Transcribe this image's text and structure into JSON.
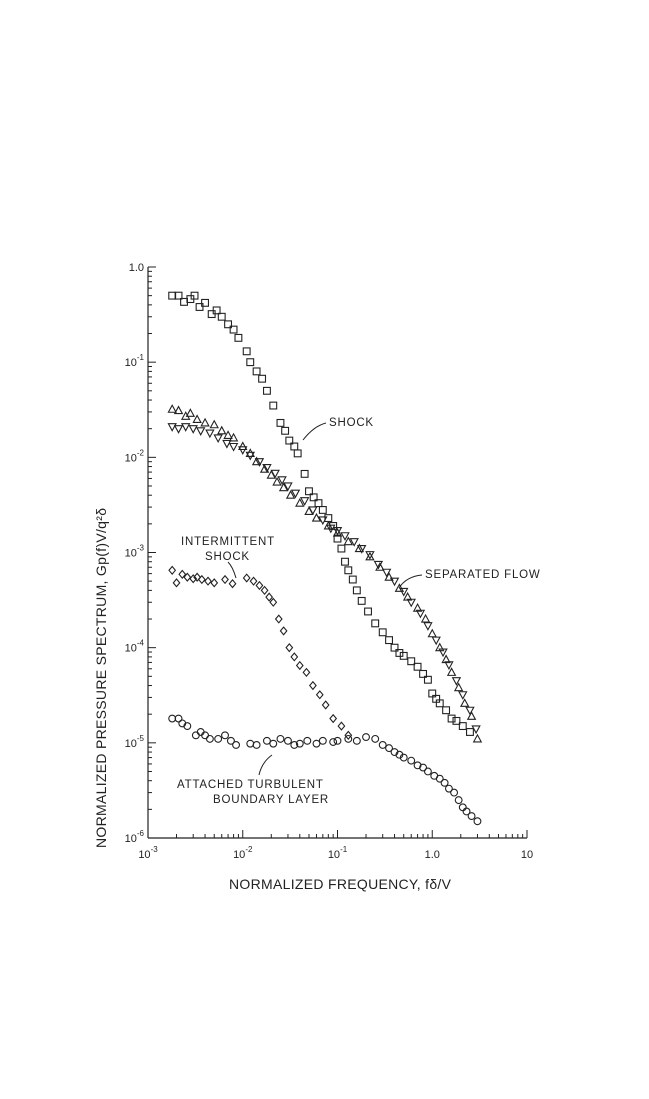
{
  "chart_data": {
    "type": "scatter",
    "title": "",
    "xlabel": "NORMALIZED FREQUENCY,  fδ/V",
    "ylabel": "NORMALIZED PRESSURE SPECTRUM,  Gp(f)V/q²δ",
    "x_scale": "log",
    "y_scale": "log",
    "xlim": [
      0.001,
      10
    ],
    "ylim": [
      1e-06,
      1
    ],
    "x_ticks": [
      {
        "base": "10",
        "exp": "-3"
      },
      {
        "base": "10",
        "exp": "-2"
      },
      {
        "base": "10",
        "exp": "-1"
      },
      {
        "base": "1.0",
        "exp": ""
      },
      {
        "base": "10",
        "exp": ""
      }
    ],
    "y_ticks": [
      {
        "base": "1.0",
        "exp": ""
      },
      {
        "base": "10",
        "exp": "-1"
      },
      {
        "base": "10",
        "exp": "-2"
      },
      {
        "base": "10",
        "exp": "-3"
      },
      {
        "base": "10",
        "exp": "-4"
      },
      {
        "base": "10",
        "exp": "-5"
      },
      {
        "base": "10",
        "exp": "-6"
      }
    ],
    "grid": false,
    "legend": "none",
    "series": [
      {
        "marker": "square",
        "points": [
          [
            0.0018,
            0.5
          ],
          [
            0.0021,
            0.5
          ],
          [
            0.0024,
            0.43
          ],
          [
            0.0028,
            0.46
          ],
          [
            0.0031,
            0.5
          ],
          [
            0.0035,
            0.38
          ],
          [
            0.004,
            0.42
          ],
          [
            0.0047,
            0.32
          ],
          [
            0.0053,
            0.35
          ],
          [
            0.006,
            0.3
          ],
          [
            0.007,
            0.25
          ],
          [
            0.008,
            0.22
          ],
          [
            0.009,
            0.18
          ],
          [
            0.011,
            0.13
          ],
          [
            0.012,
            0.1
          ],
          [
            0.014,
            0.08
          ],
          [
            0.016,
            0.067
          ],
          [
            0.018,
            0.05
          ],
          [
            0.021,
            0.035
          ],
          [
            0.025,
            0.023
          ],
          [
            0.028,
            0.019
          ],
          [
            0.031,
            0.015
          ],
          [
            0.035,
            0.013
          ],
          [
            0.038,
            0.011
          ],
          [
            0.045,
            0.0067
          ],
          [
            0.05,
            0.0044
          ],
          [
            0.056,
            0.0038
          ],
          [
            0.063,
            0.0033
          ],
          [
            0.07,
            0.0028
          ],
          [
            0.08,
            0.0023
          ],
          [
            0.09,
            0.0019
          ],
          [
            0.1,
            0.0014
          ],
          [
            0.11,
            0.0011
          ],
          [
            0.12,
            0.0008
          ],
          [
            0.13,
            0.00065
          ],
          [
            0.145,
            0.00052
          ],
          [
            0.16,
            0.0004
          ],
          [
            0.18,
            0.00031
          ],
          [
            0.21,
            0.00024
          ],
          [
            0.25,
            0.00018
          ],
          [
            0.3,
            0.000145
          ],
          [
            0.35,
            0.00012
          ],
          [
            0.4,
            0.0001
          ],
          [
            0.45,
            8.8e-05
          ],
          [
            0.5,
            8.2e-05
          ],
          [
            0.6,
            7.2e-05
          ],
          [
            0.7,
            6.3e-05
          ],
          [
            0.8,
            5.3e-05
          ],
          [
            0.9,
            4.6e-05
          ],
          [
            1.0,
            3.3e-05
          ],
          [
            1.1,
            2.9e-05
          ],
          [
            1.2,
            2.6e-05
          ],
          [
            1.4,
            2.2e-05
          ],
          [
            1.6,
            1.8e-05
          ],
          [
            1.8,
            1.7e-05
          ],
          [
            2.1,
            1.5e-05
          ],
          [
            2.5,
            1.3e-05
          ]
        ]
      },
      {
        "marker": "triangle-up",
        "points": [
          [
            0.0018,
            0.032
          ],
          [
            0.0021,
            0.031
          ],
          [
            0.0025,
            0.027
          ],
          [
            0.0028,
            0.029
          ],
          [
            0.0033,
            0.025
          ],
          [
            0.004,
            0.023
          ],
          [
            0.005,
            0.022
          ],
          [
            0.006,
            0.019
          ],
          [
            0.007,
            0.017
          ],
          [
            0.008,
            0.016
          ],
          [
            0.01,
            0.013
          ],
          [
            0.012,
            0.011
          ],
          [
            0.014,
            0.009
          ],
          [
            0.017,
            0.0075
          ],
          [
            0.02,
            0.0065
          ],
          [
            0.023,
            0.0055
          ],
          [
            0.027,
            0.0048
          ],
          [
            0.032,
            0.004
          ],
          [
            0.04,
            0.0033
          ],
          [
            0.05,
            0.0027
          ],
          [
            0.06,
            0.0023
          ],
          [
            0.08,
            0.0019
          ],
          [
            0.1,
            0.0016
          ],
          [
            0.13,
            0.0013
          ],
          [
            0.17,
            0.0011
          ],
          [
            0.22,
            0.0009
          ],
          [
            0.28,
            0.0007
          ],
          [
            0.35,
            0.00055
          ],
          [
            0.45,
            0.00042
          ],
          [
            0.55,
            0.00034
          ],
          [
            0.7,
            0.00026
          ],
          [
            0.85,
            0.0002
          ],
          [
            1.0,
            0.00014
          ],
          [
            1.2,
            0.0001
          ],
          [
            1.4,
            7.5e-05
          ],
          [
            1.6,
            5.5e-05
          ],
          [
            1.9,
            3.8e-05
          ],
          [
            2.2,
            2.6e-05
          ],
          [
            2.6,
            1.9e-05
          ],
          [
            3.0,
            1.1e-05
          ]
        ]
      },
      {
        "marker": "triangle-down",
        "points": [
          [
            0.0018,
            0.021
          ],
          [
            0.0021,
            0.02
          ],
          [
            0.0025,
            0.021
          ],
          [
            0.003,
            0.02
          ],
          [
            0.0036,
            0.019
          ],
          [
            0.0045,
            0.018
          ],
          [
            0.0055,
            0.016
          ],
          [
            0.0068,
            0.014
          ],
          [
            0.008,
            0.013
          ],
          [
            0.01,
            0.012
          ],
          [
            0.012,
            0.0105
          ],
          [
            0.015,
            0.009
          ],
          [
            0.018,
            0.0078
          ],
          [
            0.022,
            0.0068
          ],
          [
            0.026,
            0.0058
          ],
          [
            0.03,
            0.005
          ],
          [
            0.036,
            0.0042
          ],
          [
            0.045,
            0.0035
          ],
          [
            0.055,
            0.0028
          ],
          [
            0.07,
            0.0022
          ],
          [
            0.085,
            0.0018
          ],
          [
            0.1,
            0.0017
          ],
          [
            0.12,
            0.0015
          ],
          [
            0.15,
            0.0013
          ],
          [
            0.18,
            0.0011
          ],
          [
            0.22,
            0.00095
          ],
          [
            0.27,
            0.00075
          ],
          [
            0.33,
            0.00062
          ],
          [
            0.4,
            0.0005
          ],
          [
            0.5,
            0.00039
          ],
          [
            0.6,
            0.0003
          ],
          [
            0.75,
            0.00023
          ],
          [
            0.9,
            0.00017
          ],
          [
            1.1,
            0.00012
          ],
          [
            1.3,
            9e-05
          ],
          [
            1.5,
            6.6e-05
          ],
          [
            1.8,
            4.5e-05
          ],
          [
            2.1,
            3.2e-05
          ],
          [
            2.5,
            2.2e-05
          ],
          [
            2.9,
            1.4e-05
          ]
        ]
      },
      {
        "marker": "diamond",
        "points": [
          [
            0.0018,
            0.00065
          ],
          [
            0.002,
            0.00048
          ],
          [
            0.0023,
            0.00059
          ],
          [
            0.0026,
            0.00055
          ],
          [
            0.003,
            0.00053
          ],
          [
            0.0033,
            0.00055
          ],
          [
            0.0037,
            0.00052
          ],
          [
            0.0043,
            0.0005
          ],
          [
            0.005,
            0.00048
          ],
          [
            0.0065,
            0.00052
          ],
          [
            0.0078,
            0.00047
          ],
          [
            0.011,
            0.00054
          ],
          [
            0.013,
            0.0005
          ],
          [
            0.015,
            0.00045
          ],
          [
            0.017,
            0.0004
          ],
          [
            0.019,
            0.00034
          ],
          [
            0.021,
            0.0003
          ],
          [
            0.024,
            0.0002
          ],
          [
            0.027,
            0.00015
          ],
          [
            0.031,
            0.0001
          ],
          [
            0.035,
            8e-05
          ],
          [
            0.04,
            6.5e-05
          ],
          [
            0.047,
            5.5e-05
          ],
          [
            0.055,
            4e-05
          ],
          [
            0.065,
            3.2e-05
          ],
          [
            0.075,
            2.5e-05
          ],
          [
            0.09,
            1.8e-05
          ],
          [
            0.11,
            1.5e-05
          ],
          [
            0.13,
            1.2e-05
          ]
        ]
      },
      {
        "marker": "circle",
        "points": [
          [
            0.0018,
            1.8e-05
          ],
          [
            0.0021,
            1.8e-05
          ],
          [
            0.0023,
            1.6e-05
          ],
          [
            0.0026,
            1.5e-05
          ],
          [
            0.0032,
            1.2e-05
          ],
          [
            0.0036,
            1.3e-05
          ],
          [
            0.004,
            1.2e-05
          ],
          [
            0.0045,
            1.1e-05
          ],
          [
            0.0055,
            1.1e-05
          ],
          [
            0.0065,
            1.2e-05
          ],
          [
            0.0075,
            1.05e-05
          ],
          [
            0.0085,
            9.5e-06
          ],
          [
            0.012,
            9.8e-06
          ],
          [
            0.014,
            9.5e-06
          ],
          [
            0.018,
            1.05e-05
          ],
          [
            0.021,
            9.8e-06
          ],
          [
            0.025,
            1.1e-05
          ],
          [
            0.03,
            1.05e-05
          ],
          [
            0.035,
            9.5e-06
          ],
          [
            0.04,
            9.8e-06
          ],
          [
            0.048,
            1.05e-05
          ],
          [
            0.06,
            9.8e-06
          ],
          [
            0.07,
            1.05e-05
          ],
          [
            0.09,
            1.02e-05
          ],
          [
            0.1,
            1.05e-05
          ],
          [
            0.13,
            1.1e-05
          ],
          [
            0.16,
            1.05e-05
          ],
          [
            0.2,
            1.15e-05
          ],
          [
            0.25,
            1.1e-05
          ],
          [
            0.3,
            9.5e-06
          ],
          [
            0.35,
            8.8e-06
          ],
          [
            0.4,
            8e-06
          ],
          [
            0.45,
            7.5e-06
          ],
          [
            0.5,
            7e-06
          ],
          [
            0.6,
            6.5e-06
          ],
          [
            0.7,
            5.8e-06
          ],
          [
            0.8,
            5.5e-06
          ],
          [
            0.9,
            5e-06
          ],
          [
            1.05,
            4.5e-06
          ],
          [
            1.2,
            4.2e-06
          ],
          [
            1.35,
            3.8e-06
          ],
          [
            1.5,
            3.3e-06
          ],
          [
            1.7,
            3e-06
          ],
          [
            1.9,
            2.5e-06
          ],
          [
            2.1,
            2.1e-06
          ],
          [
            2.3,
            1.9e-06
          ],
          [
            2.6,
            1.7e-06
          ],
          [
            3.0,
            1.5e-06
          ]
        ]
      }
    ],
    "annotations": [
      {
        "id": "shock",
        "lines": [
          "SHOCK"
        ]
      },
      {
        "id": "separated",
        "lines": [
          "SEPARATED  FLOW"
        ]
      },
      {
        "id": "intermittent",
        "lines": [
          "INTERMITTENT",
          "SHOCK"
        ]
      },
      {
        "id": "attached",
        "lines": [
          "ATTACHED  TURBULENT",
          "BOUNDARY  LAYER"
        ]
      }
    ]
  }
}
